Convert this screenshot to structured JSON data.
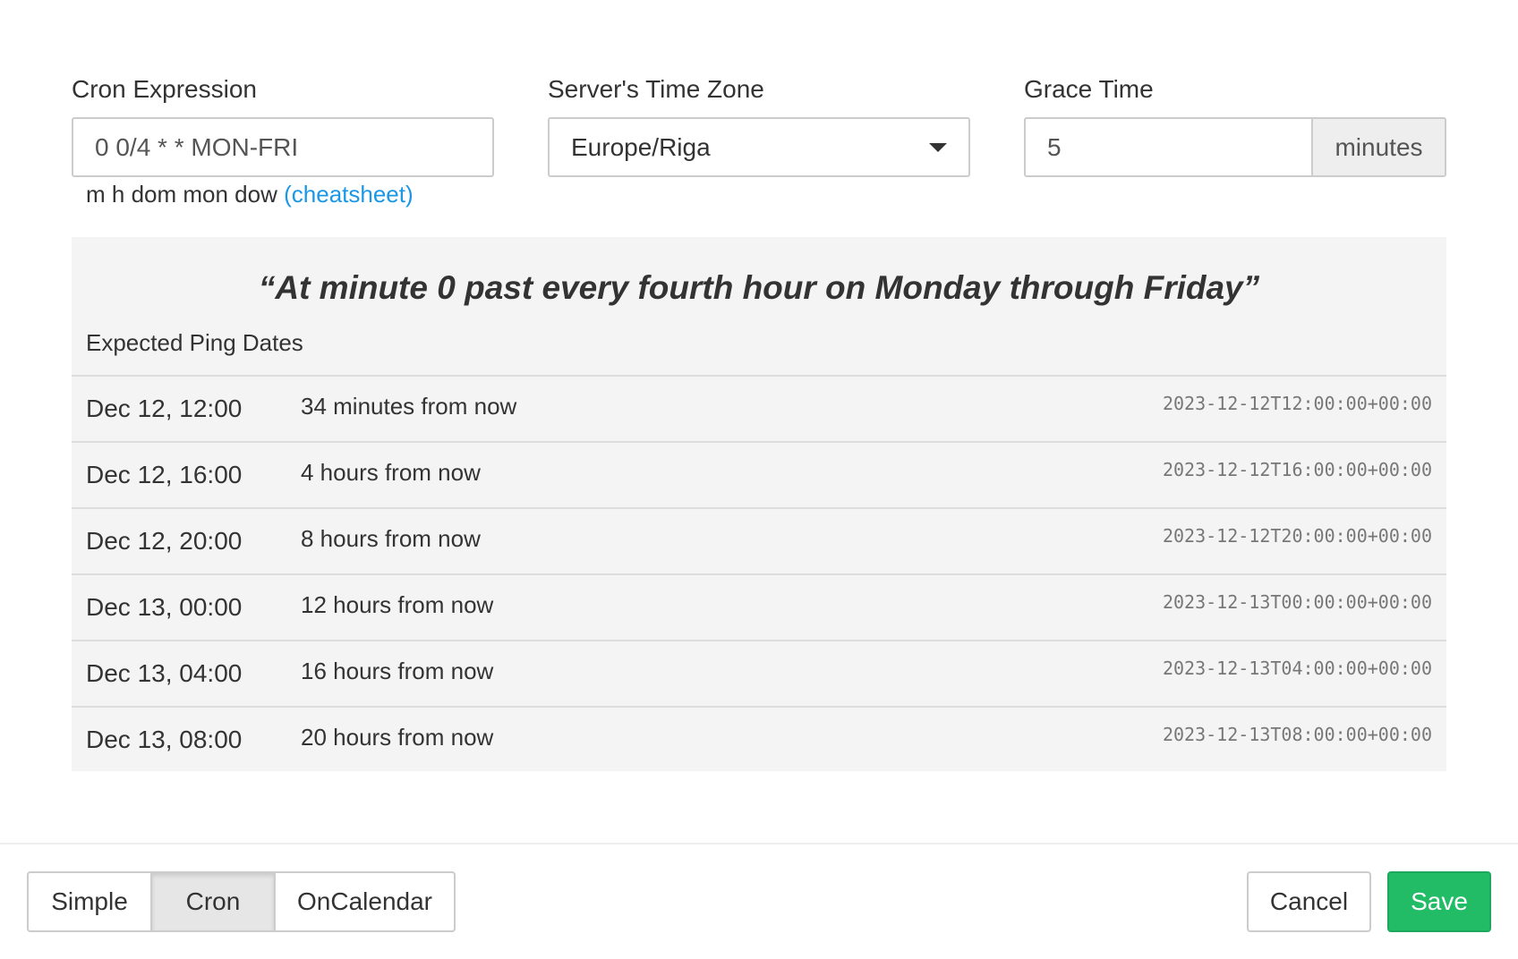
{
  "cron": {
    "label": "Cron Expression",
    "value": "0 0/4 * * MON-FRI",
    "help": "m h dom mon dow",
    "help_link": "(cheatsheet)"
  },
  "timezone": {
    "label": "Server's Time Zone",
    "value": "Europe/Riga"
  },
  "grace": {
    "label": "Grace Time",
    "value": "5",
    "unit": "minutes"
  },
  "description": "“At minute 0 past every fourth hour on Monday through Friday”",
  "expected_label": "Expected Ping Dates",
  "rows": [
    {
      "date": "Dec 12, 12:00",
      "relative": "34 minutes from now",
      "iso": "2023-12-12T12:00:00+00:00"
    },
    {
      "date": "Dec 12, 16:00",
      "relative": "4 hours from now",
      "iso": "2023-12-12T16:00:00+00:00"
    },
    {
      "date": "Dec 12, 20:00",
      "relative": "8 hours from now",
      "iso": "2023-12-12T20:00:00+00:00"
    },
    {
      "date": "Dec 13, 00:00",
      "relative": "12 hours from now",
      "iso": "2023-12-13T00:00:00+00:00"
    },
    {
      "date": "Dec 13, 04:00",
      "relative": "16 hours from now",
      "iso": "2023-12-13T04:00:00+00:00"
    },
    {
      "date": "Dec 13, 08:00",
      "relative": "20 hours from now",
      "iso": "2023-12-13T08:00:00+00:00"
    }
  ],
  "modes": [
    "Simple",
    "Cron",
    "OnCalendar"
  ],
  "active_mode": "Cron",
  "cancel": "Cancel",
  "save": "Save",
  "colors": {
    "save": "#22bb66",
    "link": "#1a97e6"
  }
}
